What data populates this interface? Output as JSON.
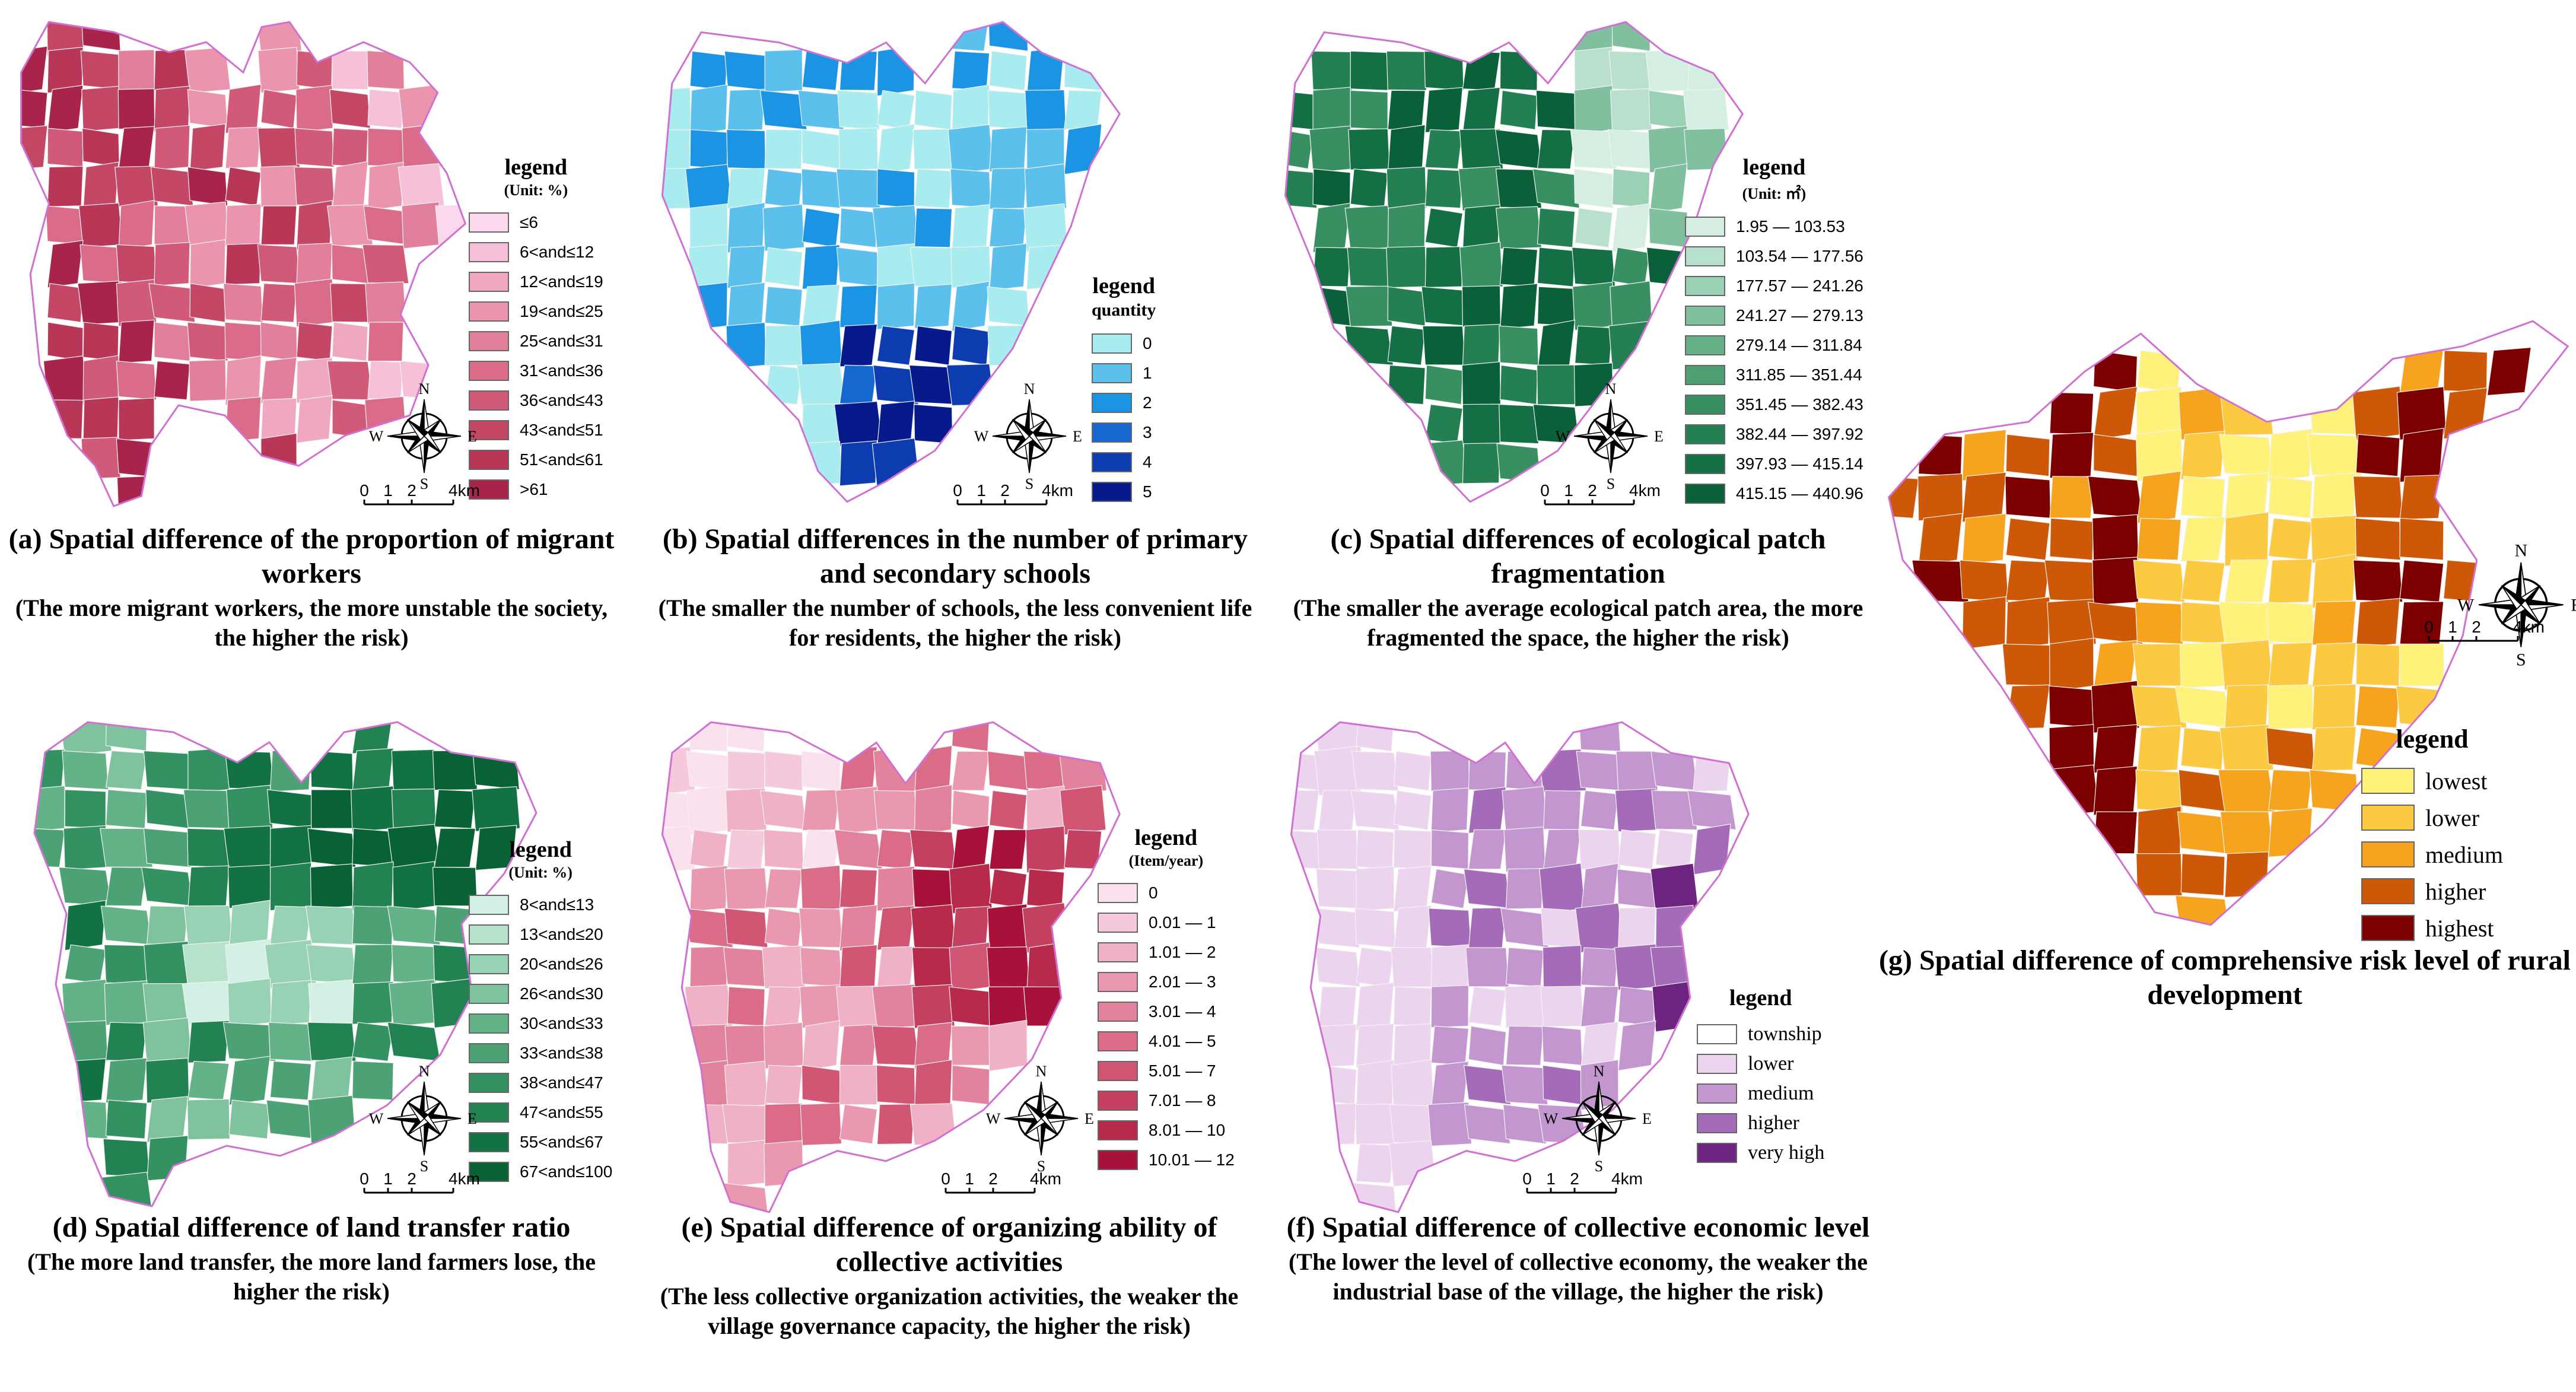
{
  "panels": [
    {
      "id": "a",
      "caption_title": "(a) Spatial difference of the proportion of migrant workers",
      "caption_sub": "(The more migrant workers, the more unstable the society, the higher the risk)",
      "legend_title": "legend",
      "legend_unit": "(Unit: %)",
      "legend_items": [
        "≤6",
        "6<and≤12",
        "12<and≤19",
        "19<and≤25",
        "25<and≤31",
        "31<and≤36",
        "36<and≤43",
        "43<and≤51",
        "51<and≤61",
        ">61"
      ],
      "colors": [
        "#fbd8ec",
        "#f6c0d8",
        "#f0a8c2",
        "#ea94ae",
        "#e2809c",
        "#da6c8a",
        "#d05a78",
        "#c44866",
        "#b83656",
        "#a8244a"
      ]
    },
    {
      "id": "b",
      "caption_title": "(b) Spatial differences in the number of primary and secondary schools",
      "caption_sub": "(The smaller the number of schools, the less convenient life for residents, the higher the risk)",
      "legend_title": "legend",
      "legend_unit": "quantity",
      "legend_items": [
        "0",
        "1",
        "2",
        "3",
        "4",
        "5"
      ],
      "colors": [
        "#a8ecf0",
        "#5cc0ec",
        "#1c94e4",
        "#1468d0",
        "#0c3cb0",
        "#061a8c"
      ]
    },
    {
      "id": "c",
      "caption_title": "(c) Spatial differences of ecological patch fragmentation",
      "caption_sub": "(The smaller the average ecological patch area, the more fragmented the space, the higher the risk)",
      "legend_title": "legend",
      "legend_unit": "(Unit: ㎡)",
      "legend_items": [
        "1.95 — 103.53",
        "103.54 — 177.56",
        "177.57 — 241.26",
        "241.27 — 279.13",
        "279.14 — 311.84",
        "311.85 — 351.44",
        "351.45 — 382.43",
        "382.44 — 397.92",
        "397.93 — 415.14",
        "415.15 — 440.96"
      ],
      "colors": [
        "#d4efe2",
        "#b8e0cc",
        "#9ad0b4",
        "#80c09e",
        "#66b088",
        "#4ea074",
        "#389062",
        "#248052",
        "#147044",
        "#0a6038"
      ]
    },
    {
      "id": "d",
      "caption_title": "(d) Spatial difference of land transfer ratio",
      "caption_sub": "(The more land transfer, the more land farmers lose, the higher the risk)",
      "legend_title": "legend",
      "legend_unit": "(Unit: %)",
      "legend_items": [
        "8<and≤13",
        "13<and≤20",
        "20<and≤26",
        "26<and≤30",
        "30<and≤33",
        "33<and≤38",
        "38<and≤47",
        "47<and≤55",
        "55<and≤67",
        "67<and≤100"
      ],
      "colors": [
        "#d2f0e4",
        "#b6e2cc",
        "#98d2b4",
        "#7ec29e",
        "#64b288",
        "#4ca274",
        "#349262",
        "#228252",
        "#127244",
        "#086236"
      ]
    },
    {
      "id": "e",
      "caption_title": "(e) Spatial difference of organizing ability of collective activities",
      "caption_sub": "(The less collective organization activities, the weaker the village governance capacity, the higher the risk)",
      "legend_title": "legend",
      "legend_unit": "(Item/year)",
      "legend_items": [
        "0",
        "0.01 — 1",
        "1.01 — 2",
        "2.01 — 3",
        "3.01 — 4",
        "4.01 — 5",
        "5.01 — 7",
        "7.01 — 8",
        "8.01 — 10",
        "10.01 — 12"
      ],
      "colors": [
        "#fbe0ee",
        "#f6c8dc",
        "#f0b0c6",
        "#ea98b0",
        "#e2829c",
        "#da6c88",
        "#d05674",
        "#c44060",
        "#b82a4c",
        "#a8123a"
      ]
    },
    {
      "id": "f",
      "caption_title": "(f) Spatial difference of collective economic level",
      "caption_sub": "(The lower the level of collective economy, the weaker the industrial base of the village, the higher the risk)",
      "legend_title": "legend",
      "legend_unit": "",
      "legend_items": [
        "township",
        "lower",
        "medium",
        "higher",
        "very high"
      ],
      "colors": [
        "#ffffff",
        "#ecd4ee",
        "#c496d0",
        "#a46cb8",
        "#6c2480"
      ]
    },
    {
      "id": "g",
      "caption_title": "(g) Spatial difference of comprehensive risk level of rural development",
      "caption_sub": "",
      "legend_title": "legend",
      "legend_unit": "",
      "legend_items": [
        "lowest",
        "lower",
        "medium",
        "higher",
        "highest"
      ],
      "colors": [
        "#fff27a",
        "#fcca40",
        "#f6a41e",
        "#cc5808",
        "#7c0000"
      ]
    }
  ],
  "compass": {
    "n": "N",
    "s": "S",
    "e": "E",
    "w": "W"
  },
  "scale": {
    "ticks": [
      "0",
      "1",
      "2",
      "4km"
    ]
  }
}
